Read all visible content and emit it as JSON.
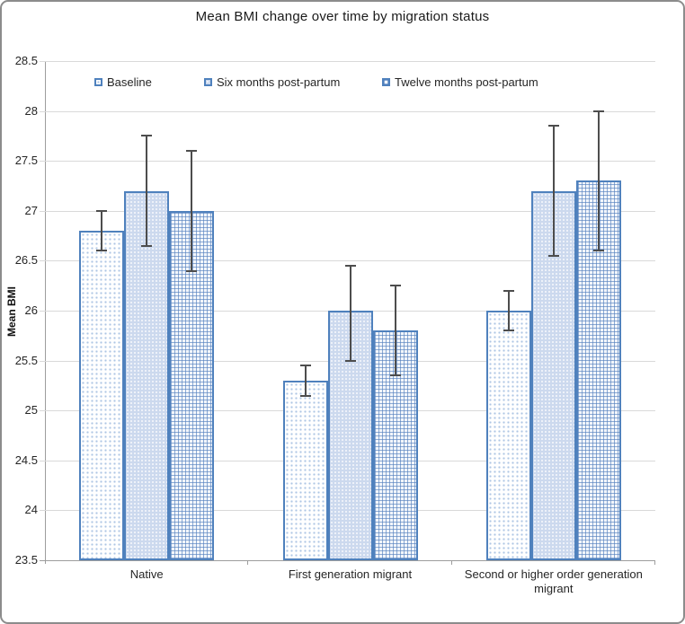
{
  "figure": {
    "border_color": "#8c8c8c",
    "background": "#ffffff"
  },
  "chart_data": {
    "type": "bar",
    "title": "Mean BMI change over time by migration status",
    "xlabel": "",
    "ylabel": "Mean BMI",
    "ylim": [
      23.5,
      28.5
    ],
    "ytick_step": 0.5,
    "yticks": [
      "28.5",
      "28",
      "27.5",
      "27",
      "26.5",
      "26",
      "25.5",
      "25",
      "24.5",
      "24",
      "23.5"
    ],
    "grid": true,
    "legend_position": "top-inside-horizontal",
    "categories": [
      "Native",
      "First generation migrant",
      "Second or higher order generation migrant"
    ],
    "series": [
      {
        "name": "Baseline",
        "pattern": "white-with-blue-dots",
        "values": [
          26.8,
          25.3,
          26.0
        ],
        "error_low": [
          0.2,
          0.15,
          0.2
        ],
        "error_high": [
          0.2,
          0.15,
          0.2
        ]
      },
      {
        "name": "Six months post-partum",
        "pattern": "light-blue-speckle",
        "values": [
          27.2,
          26.0,
          27.2
        ],
        "error_low": [
          0.55,
          0.5,
          0.65
        ],
        "error_high": [
          0.55,
          0.45,
          0.65
        ]
      },
      {
        "name": "Twelve months post-partum",
        "pattern": "blue-crosshatch-grid",
        "values": [
          27.0,
          25.8,
          27.3
        ],
        "error_low": [
          0.6,
          0.45,
          0.7
        ],
        "error_high": [
          0.6,
          0.45,
          0.7
        ]
      }
    ],
    "colors": {
      "bar_border": "#4f81bd",
      "dot_fill": "#aec6e4",
      "shade_fill": "#ccd9ee",
      "grid_pattern_line": "#5480be",
      "error_bar": "#4d4d4d",
      "gridline": "#d9d9d9",
      "axis_line": "#9d9d9d",
      "text": "#262626"
    }
  }
}
